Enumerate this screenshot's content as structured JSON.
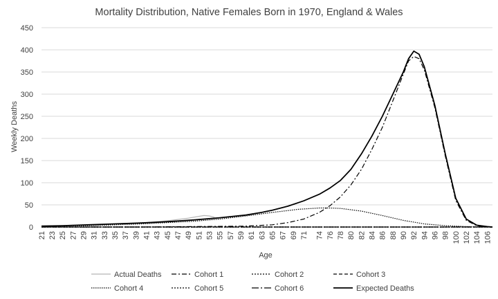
{
  "chart_data": {
    "type": "line",
    "title": "Mortality Distribution, Native Females Born in 1970, England & Wales",
    "xlabel": "Age",
    "ylabel": "Weekly Deaths",
    "ylim": [
      0,
      450
    ],
    "yticks": [
      0,
      50,
      100,
      150,
      200,
      250,
      300,
      350,
      400,
      450
    ],
    "xlim": [
      21,
      107
    ],
    "xticks": [
      21,
      23,
      25,
      27,
      29,
      31,
      33,
      35,
      37,
      39,
      41,
      43,
      45,
      47,
      49,
      51,
      53,
      55,
      57,
      59,
      61,
      63,
      65,
      67,
      69,
      71,
      74,
      76,
      78,
      80,
      82,
      84,
      86,
      88,
      90,
      92,
      94,
      96,
      98,
      100,
      102,
      104,
      106
    ],
    "grid": "horizontal",
    "legend_position": "bottom",
    "series": [
      {
        "name": "Actual Deaths",
        "style": "solid-gray",
        "color": "#b4b4b4",
        "x": [
          21,
          23,
          25,
          27,
          29,
          31,
          33,
          35,
          37,
          39,
          41,
          43,
          45,
          47,
          49,
          51,
          52,
          53,
          54
        ],
        "values": [
          2,
          3,
          3,
          4,
          4,
          5,
          6,
          7,
          8,
          9,
          10,
          12,
          14,
          17,
          20,
          24,
          26,
          25,
          22
        ]
      },
      {
        "name": "Cohort 1",
        "style": "dash-dot",
        "color": "#000000",
        "x": [
          21,
          40,
          60,
          65,
          68,
          71,
          74,
          76,
          78,
          80,
          82,
          84,
          86,
          88,
          90,
          91,
          92,
          93,
          94,
          96,
          98,
          100,
          102,
          104,
          106,
          107
        ],
        "values": [
          0,
          0,
          2,
          5,
          10,
          18,
          33,
          48,
          68,
          95,
          130,
          175,
          225,
          285,
          345,
          375,
          385,
          380,
          355,
          270,
          160,
          60,
          15,
          3,
          0,
          0
        ]
      },
      {
        "name": "Cohort 2",
        "style": "dotted",
        "color": "#000000",
        "x": [
          21,
          40,
          60,
          80,
          107
        ],
        "values": [
          0,
          0,
          0,
          0,
          0
        ]
      },
      {
        "name": "Cohort 3",
        "style": "dashed",
        "color": "#000000",
        "x": [
          21,
          40,
          60,
          80,
          107
        ],
        "values": [
          0,
          0,
          0,
          0,
          0
        ]
      },
      {
        "name": "Cohort 4",
        "style": "dotted-fine",
        "color": "#000000",
        "x": [
          21,
          30,
          40,
          50,
          55,
          60,
          65,
          70,
          74,
          76,
          78,
          82,
          86,
          90,
          94,
          98,
          102,
          106
        ],
        "values": [
          1,
          3,
          7,
          13,
          18,
          25,
          33,
          40,
          43,
          43,
          42,
          36,
          26,
          15,
          7,
          3,
          1,
          0
        ]
      },
      {
        "name": "Cohort 5",
        "style": "dotted",
        "color": "#000000",
        "x": [
          21,
          40,
          60,
          80,
          107
        ],
        "values": [
          0,
          0,
          0,
          0,
          0
        ]
      },
      {
        "name": "Cohort 6",
        "style": "long-dash-dot",
        "color": "#000000",
        "x": [
          21,
          40,
          60,
          80,
          107
        ],
        "values": [
          0,
          0,
          0,
          0,
          0
        ]
      },
      {
        "name": "Expected Deaths",
        "style": "solid",
        "color": "#000000",
        "x": [
          21,
          25,
          30,
          35,
          40,
          45,
          50,
          55,
          60,
          63,
          65,
          68,
          71,
          74,
          76,
          78,
          80,
          82,
          84,
          86,
          88,
          90,
          91,
          92,
          93,
          94,
          96,
          98,
          100,
          102,
          104,
          106,
          107
        ],
        "values": [
          2,
          3,
          5,
          7,
          9,
          12,
          16,
          21,
          27,
          33,
          38,
          47,
          59,
          74,
          88,
          105,
          130,
          165,
          205,
          250,
          300,
          350,
          380,
          397,
          390,
          362,
          275,
          165,
          65,
          18,
          4,
          1,
          0
        ]
      }
    ]
  }
}
